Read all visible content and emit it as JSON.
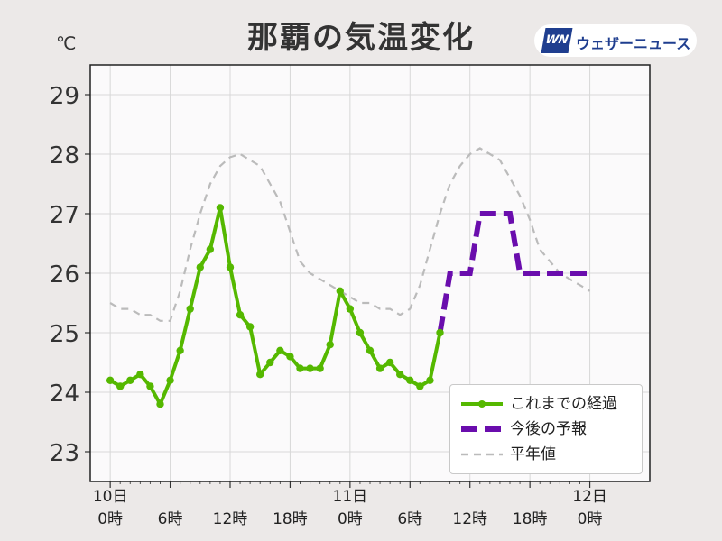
{
  "title": "那覇の気温変化",
  "unit": "℃",
  "logo": {
    "mark": "WN",
    "text": "ウェザーニュース"
  },
  "colors": {
    "observed": "#55b800",
    "forecast": "#6a0dad",
    "normal": "#bbbbbb"
  },
  "chart_data": {
    "type": "line",
    "title": "那覇の気温変化",
    "ylabel": "℃",
    "ylim": [
      22.5,
      29.5
    ],
    "yticks": [
      "23",
      "24",
      "25",
      "26",
      "27",
      "28",
      "29"
    ],
    "xlim_hours": [
      -2,
      54
    ],
    "xticks": [
      {
        "hour": 0,
        "top": "10日",
        "bottom": "0時"
      },
      {
        "hour": 6,
        "top": "",
        "bottom": "6時"
      },
      {
        "hour": 12,
        "top": "",
        "bottom": "12時"
      },
      {
        "hour": 18,
        "top": "",
        "bottom": "18時"
      },
      {
        "hour": 24,
        "top": "11日",
        "bottom": "0時"
      },
      {
        "hour": 30,
        "top": "",
        "bottom": "6時"
      },
      {
        "hour": 36,
        "top": "",
        "bottom": "12時"
      },
      {
        "hour": 42,
        "top": "",
        "bottom": "18時"
      },
      {
        "hour": 48,
        "top": "12日",
        "bottom": "0時"
      }
    ],
    "grid": true,
    "legend_position": "bottom-right",
    "series": [
      {
        "name": "これまでの経過",
        "style": "solid-markers",
        "x": [
          0,
          1,
          2,
          3,
          4,
          5,
          6,
          7,
          8,
          9,
          10,
          11,
          12,
          13,
          14,
          15,
          16,
          17,
          18,
          19,
          20,
          21,
          22,
          23,
          24,
          25,
          26,
          27,
          28,
          29,
          30,
          31,
          32,
          33
        ],
        "values": [
          24.2,
          24.1,
          24.2,
          24.3,
          24.1,
          23.8,
          24.2,
          24.7,
          25.4,
          26.1,
          26.4,
          27.1,
          26.1,
          25.3,
          25.1,
          24.3,
          24.5,
          24.7,
          24.6,
          24.4,
          24.4,
          24.4,
          24.8,
          25.7,
          25.4,
          25.0,
          24.7,
          24.4,
          24.5,
          24.3,
          24.2,
          24.1,
          24.2,
          25.0
        ]
      },
      {
        "name": "今後の予報",
        "style": "dashed",
        "x": [
          33,
          34,
          35,
          36,
          37,
          38,
          39,
          40,
          41,
          42,
          43,
          44,
          45,
          46,
          47,
          48
        ],
        "values": [
          25.0,
          26.0,
          26.0,
          26.0,
          27.0,
          27.0,
          27.0,
          27.0,
          26.0,
          26.0,
          26.0,
          26.0,
          26.0,
          26.0,
          26.0,
          26.0
        ]
      },
      {
        "name": "平年値",
        "style": "thin-dashed",
        "x": [
          0,
          1,
          2,
          3,
          4,
          5,
          6,
          7,
          8,
          9,
          10,
          11,
          12,
          13,
          14,
          15,
          16,
          17,
          18,
          19,
          20,
          21,
          22,
          23,
          24,
          25,
          26,
          27,
          28,
          29,
          30,
          31,
          32,
          33,
          34,
          35,
          36,
          37,
          38,
          39,
          40,
          41,
          42,
          43,
          44,
          45,
          46,
          47,
          48
        ],
        "values": [
          25.5,
          25.4,
          25.4,
          25.3,
          25.3,
          25.2,
          25.2,
          25.7,
          26.4,
          27.0,
          27.5,
          27.8,
          27.95,
          28.0,
          27.9,
          27.8,
          27.5,
          27.2,
          26.7,
          26.2,
          26.0,
          25.9,
          25.8,
          25.7,
          25.6,
          25.5,
          25.5,
          25.4,
          25.4,
          25.3,
          25.4,
          25.8,
          26.4,
          27.0,
          27.5,
          27.8,
          28.0,
          28.1,
          28.0,
          27.9,
          27.6,
          27.3,
          26.9,
          26.4,
          26.2,
          26.0,
          25.9,
          25.8,
          25.7
        ]
      }
    ]
  }
}
